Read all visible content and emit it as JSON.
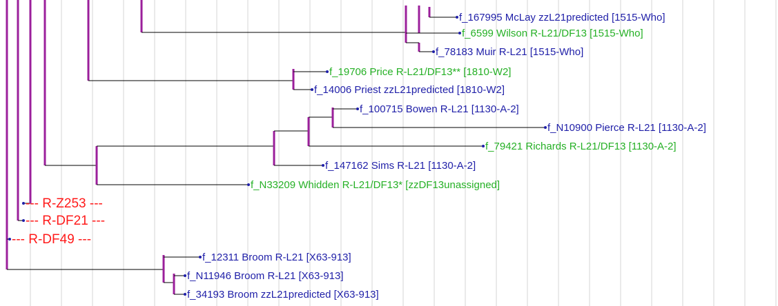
{
  "nodes": [
    {
      "label": "f_167995 McLay zzL21predicted [1515-Who]"
    },
    {
      "label": "f_6599 Wilson R-L21/DF13 [1515-Who]"
    },
    {
      "label": "f_78183 Muir R-L21 [1515-Who]"
    },
    {
      "label": "f_19706 Price R-L21/DF13** [1810-W2]"
    },
    {
      "label": "f_14006 Priest zzL21predicted [1810-W2]"
    },
    {
      "label": "f_100715 Bowen R-L21 [1130-A-2]"
    },
    {
      "label": "f_N10900 Pierce R-L21 [1130-A-2]"
    },
    {
      "label": "f_79421 Richards R-L21/DF13 [1130-A-2]"
    },
    {
      "label": "f_147162 Sims R-L21 [1130-A-2]"
    },
    {
      "label": "f_N33209 Whidden R-L21/DF13* [zzDF13unassigned]"
    },
    {
      "label": "--- R-Z253 ---"
    },
    {
      "label": "--- R-DF21 ---"
    },
    {
      "label": "--- R-DF49 ---"
    },
    {
      "label": "f_12311 Broom R-L21 [X63-913]"
    },
    {
      "label": "f_N11946 Broom R-L21 [X63-913]"
    },
    {
      "label": "f_34193 Broom zzL21predicted [X63-913]"
    }
  ]
}
